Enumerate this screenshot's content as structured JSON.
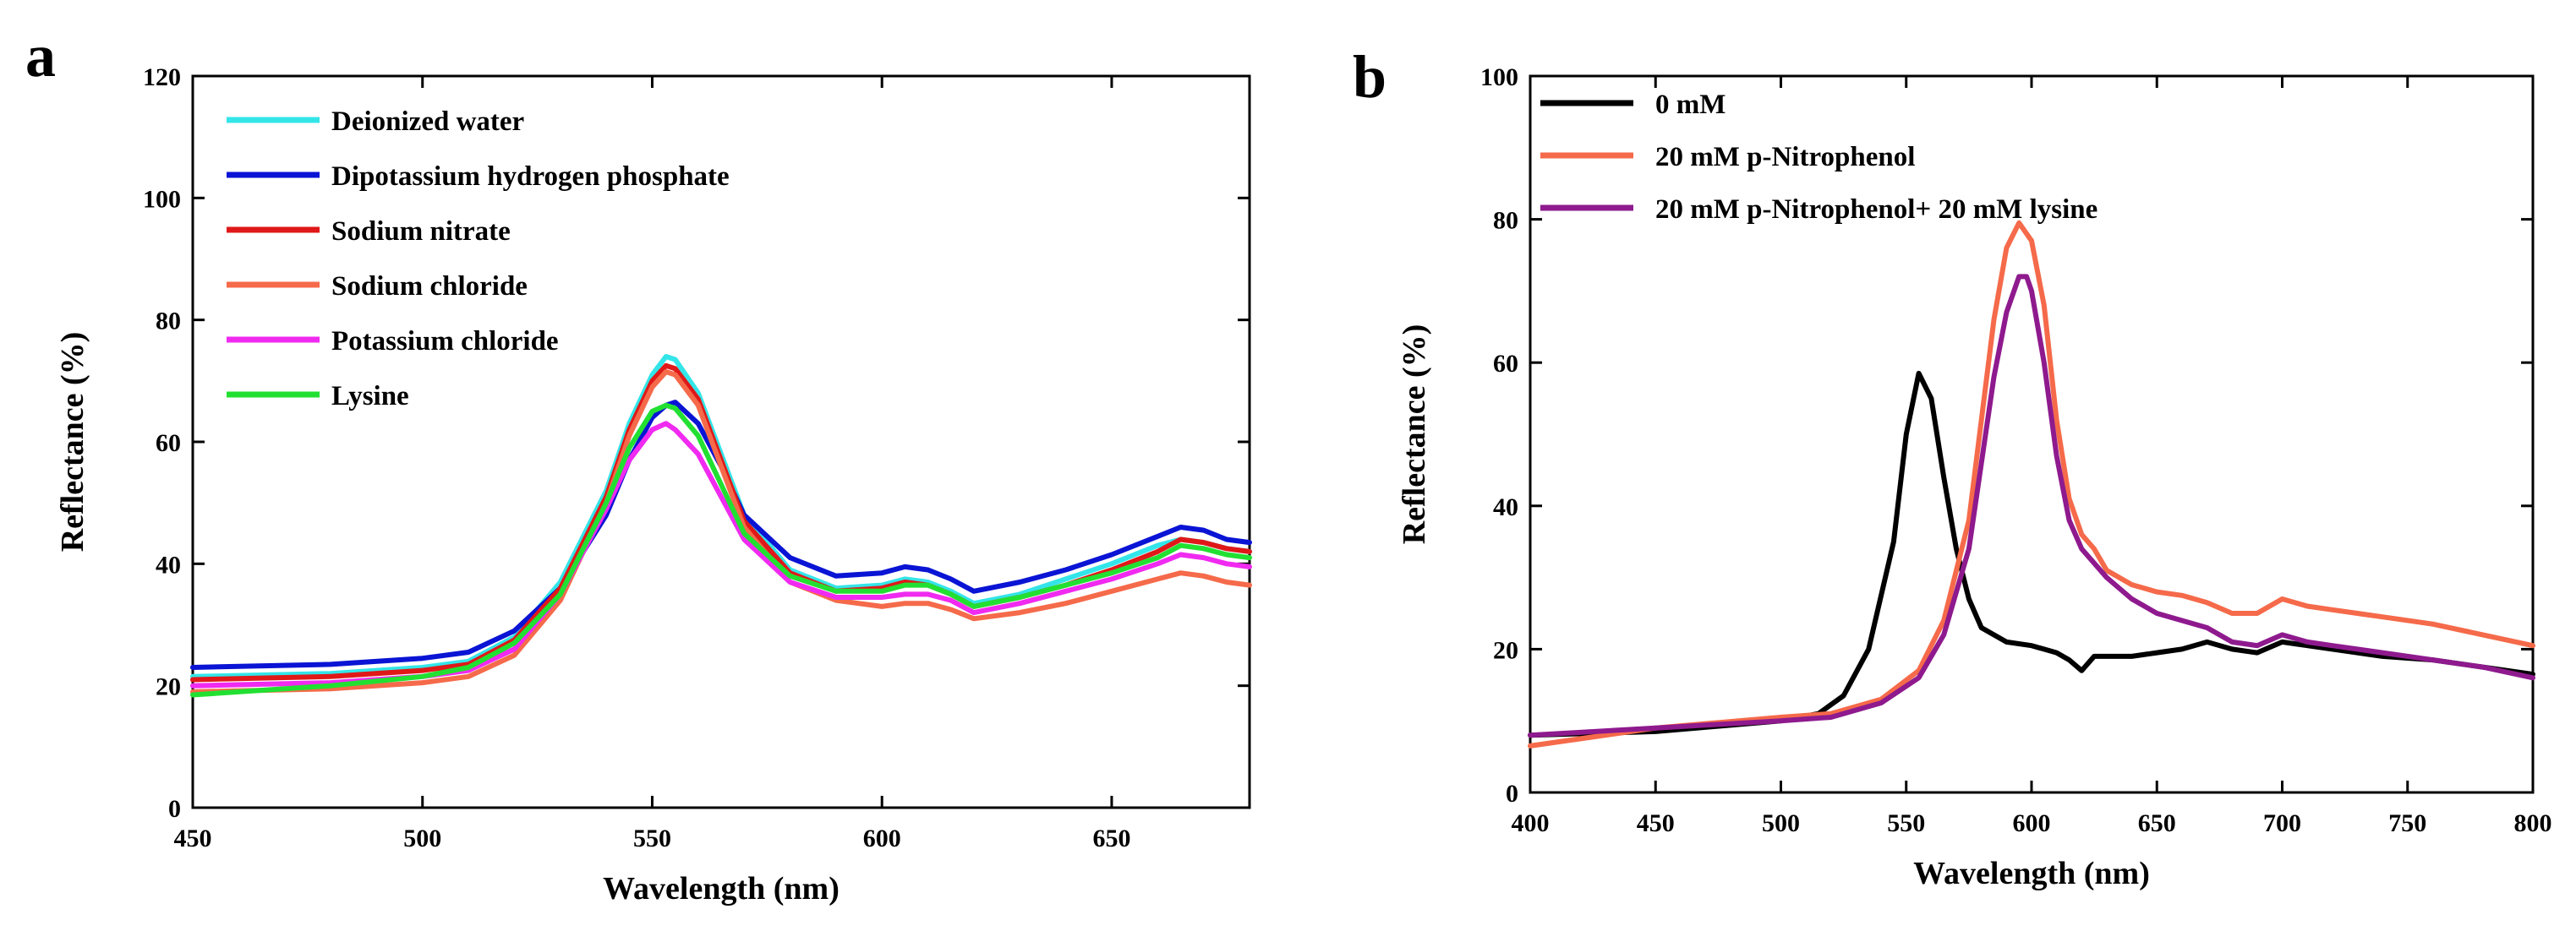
{
  "colors": {
    "cyan": "#33e5e8",
    "blue": "#0a14d4",
    "red": "#e01818",
    "orange_red": "#f56a4a",
    "magenta": "#f02af0",
    "green": "#22e032",
    "black": "#000000",
    "orange": "#f56a4a",
    "purple": "#8e1a8e"
  },
  "chart_data": [
    {
      "panel_label": "a",
      "type": "line",
      "xlabel": "Wavelength (nm)",
      "ylabel": "Reflectance (%)",
      "xlim": [
        450,
        680
      ],
      "ylim": [
        0,
        120
      ],
      "xticks": [
        450,
        500,
        550,
        600,
        650
      ],
      "yticks": [
        0,
        20,
        40,
        60,
        80,
        100,
        120
      ],
      "grid": false,
      "legend_position": "top-left",
      "series": [
        {
          "name": "Deionized water",
          "color": "#33e5e8",
          "x": [
            450,
            480,
            500,
            510,
            520,
            530,
            540,
            545,
            550,
            553,
            555,
            560,
            565,
            570,
            580,
            590,
            600,
            605,
            610,
            615,
            620,
            630,
            640,
            650,
            660,
            665,
            670,
            675,
            680
          ],
          "y": [
            21.5,
            22,
            23,
            24,
            28,
            37,
            52,
            63,
            71,
            74,
            73.5,
            68,
            58,
            48,
            39,
            36,
            36.5,
            37.5,
            37,
            35.5,
            33.5,
            35,
            37.5,
            40,
            43,
            44,
            43.5,
            42.5,
            42
          ]
        },
        {
          "name": "Dipotassium hydrogen phosphate",
          "color": "#0a14d4",
          "x": [
            450,
            480,
            500,
            510,
            520,
            530,
            540,
            545,
            550,
            553,
            555,
            560,
            565,
            570,
            580,
            590,
            600,
            605,
            610,
            615,
            620,
            630,
            640,
            650,
            660,
            665,
            670,
            675,
            680
          ],
          "y": [
            23,
            23.5,
            24.5,
            25.5,
            29,
            36,
            48,
            57,
            64,
            66,
            66.5,
            63,
            56,
            48,
            41,
            38,
            38.5,
            39.5,
            39,
            37.5,
            35.5,
            37,
            39,
            41.5,
            44.5,
            46,
            45.5,
            44,
            43.5
          ]
        },
        {
          "name": "Sodium nitrate",
          "color": "#e01818",
          "x": [
            450,
            480,
            500,
            510,
            520,
            530,
            540,
            545,
            550,
            553,
            555,
            560,
            565,
            570,
            580,
            590,
            600,
            605,
            610,
            615,
            620,
            630,
            640,
            650,
            660,
            665,
            670,
            675,
            680
          ],
          "y": [
            21,
            21.5,
            22.5,
            23.5,
            27.5,
            36,
            51,
            62,
            70,
            72.5,
            72,
            67,
            57,
            47,
            38.5,
            35.5,
            36,
            37,
            36.5,
            35,
            33,
            34.5,
            36.5,
            39,
            42,
            44,
            43.5,
            42.5,
            42
          ]
        },
        {
          "name": "Sodium chloride",
          "color": "#f56a4a",
          "x": [
            450,
            480,
            500,
            510,
            520,
            530,
            540,
            545,
            550,
            553,
            555,
            560,
            565,
            570,
            580,
            590,
            600,
            605,
            610,
            615,
            620,
            630,
            640,
            650,
            660,
            665,
            670,
            675,
            680
          ],
          "y": [
            19,
            19.5,
            20.5,
            21.5,
            25,
            34,
            50,
            61,
            69,
            71.5,
            71,
            66,
            56,
            46,
            37,
            34,
            33,
            33.5,
            33.5,
            32.5,
            31,
            32,
            33.5,
            35.5,
            37.5,
            38.5,
            38,
            37,
            36.5
          ]
        },
        {
          "name": "Potassium chloride",
          "color": "#f02af0",
          "x": [
            450,
            480,
            500,
            510,
            520,
            530,
            540,
            545,
            550,
            553,
            555,
            560,
            565,
            570,
            580,
            590,
            600,
            605,
            610,
            615,
            620,
            630,
            640,
            650,
            660,
            665,
            670,
            675,
            680
          ],
          "y": [
            20,
            20.5,
            21.5,
            22.5,
            26,
            35,
            49,
            57,
            62,
            63,
            62,
            58,
            51,
            44,
            37,
            34.5,
            34.5,
            35,
            35,
            34,
            32,
            33.5,
            35.5,
            37.5,
            40,
            41.5,
            41,
            40,
            39.5
          ]
        },
        {
          "name": "Lysine",
          "color": "#22e032",
          "x": [
            450,
            480,
            500,
            510,
            520,
            530,
            540,
            545,
            550,
            553,
            555,
            560,
            565,
            570,
            580,
            590,
            600,
            605,
            610,
            615,
            620,
            630,
            640,
            650,
            660,
            665,
            670,
            675,
            680
          ],
          "y": [
            18.5,
            20,
            21.5,
            23,
            27,
            35,
            50,
            59,
            65,
            66,
            65.5,
            61,
            53,
            45,
            38,
            35.5,
            35.5,
            36.5,
            36.5,
            35,
            33,
            34.5,
            36.5,
            38.5,
            41,
            43,
            42.5,
            41.5,
            41
          ]
        }
      ]
    },
    {
      "panel_label": "b",
      "type": "line",
      "xlabel": "Wavelength (nm)",
      "ylabel": "Reflectance (%)",
      "xlim": [
        400,
        800
      ],
      "ylim": [
        0,
        100
      ],
      "xticks": [
        400,
        450,
        500,
        550,
        600,
        650,
        700,
        750,
        800
      ],
      "yticks": [
        0,
        20,
        40,
        60,
        80,
        100
      ],
      "grid": false,
      "legend_position": "top-left",
      "series": [
        {
          "name": "0 mM",
          "color": "#000000",
          "x": [
            400,
            450,
            500,
            515,
            525,
            535,
            545,
            550,
            555,
            560,
            565,
            570,
            575,
            580,
            590,
            600,
            610,
            615,
            620,
            625,
            640,
            650,
            660,
            670,
            680,
            690,
            700,
            710,
            720,
            740,
            760,
            780,
            800
          ],
          "y": [
            8,
            8.5,
            10,
            11,
            13.5,
            20,
            35,
            50,
            58.5,
            55,
            44,
            34,
            27,
            23,
            21,
            20.5,
            19.5,
            18.5,
            17,
            19,
            19,
            19.5,
            20,
            21,
            20,
            19.5,
            21,
            20.5,
            20,
            19,
            18.5,
            17.5,
            16.5
          ]
        },
        {
          "name": "20 mM p-Nitrophenol",
          "color": "#f56a4a",
          "x": [
            400,
            450,
            500,
            520,
            540,
            555,
            565,
            575,
            580,
            585,
            590,
            595,
            600,
            605,
            610,
            615,
            620,
            625,
            630,
            640,
            650,
            660,
            670,
            680,
            690,
            700,
            710,
            720,
            740,
            760,
            780,
            800
          ],
          "y": [
            6.5,
            9,
            10.5,
            11,
            13,
            17,
            24,
            38,
            52,
            66,
            76,
            79.5,
            77,
            68,
            52,
            41,
            36,
            34,
            31,
            29,
            28,
            27.5,
            26.5,
            25,
            25,
            27,
            26,
            25.5,
            24.5,
            23.5,
            22,
            20.5
          ]
        },
        {
          "name": "20 mM p-Nitrophenol+ 20 mM lysine",
          "color": "#8e1a8e",
          "x": [
            400,
            450,
            500,
            520,
            540,
            555,
            565,
            575,
            580,
            585,
            590,
            595,
            598,
            600,
            605,
            610,
            615,
            620,
            625,
            630,
            640,
            650,
            660,
            670,
            680,
            690,
            700,
            710,
            720,
            740,
            760,
            780,
            800
          ],
          "y": [
            8,
            9,
            10,
            10.5,
            12.5,
            16,
            22,
            34,
            46,
            58,
            67,
            72,
            72,
            70,
            60,
            47,
            38,
            34,
            32,
            30,
            27,
            25,
            24,
            23,
            21,
            20.5,
            22,
            21,
            20.5,
            19.5,
            18.5,
            17.5,
            16
          ]
        }
      ]
    }
  ]
}
